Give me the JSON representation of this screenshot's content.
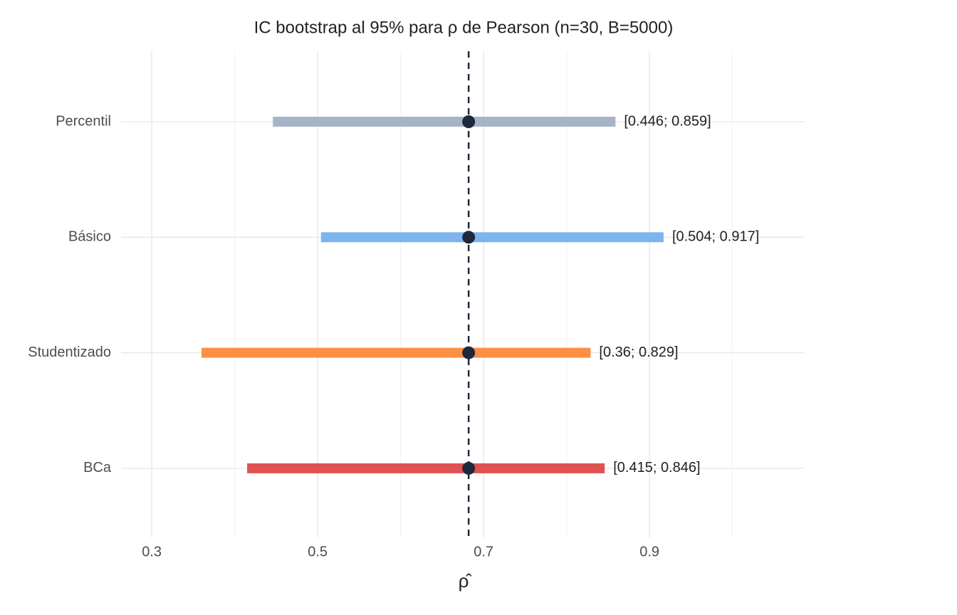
{
  "chart_data": {
    "type": "interval",
    "title": "IC bootstrap al 95% para ρ de Pearson (n=30, B=5000)",
    "x_label": "ρ̂",
    "categories": [
      "Percentil",
      "Básico",
      "Studentizado",
      "BCa"
    ],
    "lower": [
      0.446,
      0.504,
      0.36,
      0.415
    ],
    "upper": [
      0.859,
      0.917,
      0.829,
      0.846
    ],
    "value_labels": [
      "[0.446; 0.859]",
      "[0.504; 0.917]",
      "[0.36; 0.829]",
      "[0.415; 0.846]"
    ],
    "colors": [
      "#a7b4c8",
      "#7db4f0",
      "#fd8f45",
      "#e05252"
    ],
    "estimate": 0.682,
    "point_color": "#1e293b",
    "xlim": [
      0.263,
      1.087
    ],
    "xticks": [
      0.3,
      0.5,
      0.7,
      0.9
    ],
    "minor_xticks": [
      0.4,
      0.6,
      0.8,
      1.0
    ],
    "grid": true
  }
}
